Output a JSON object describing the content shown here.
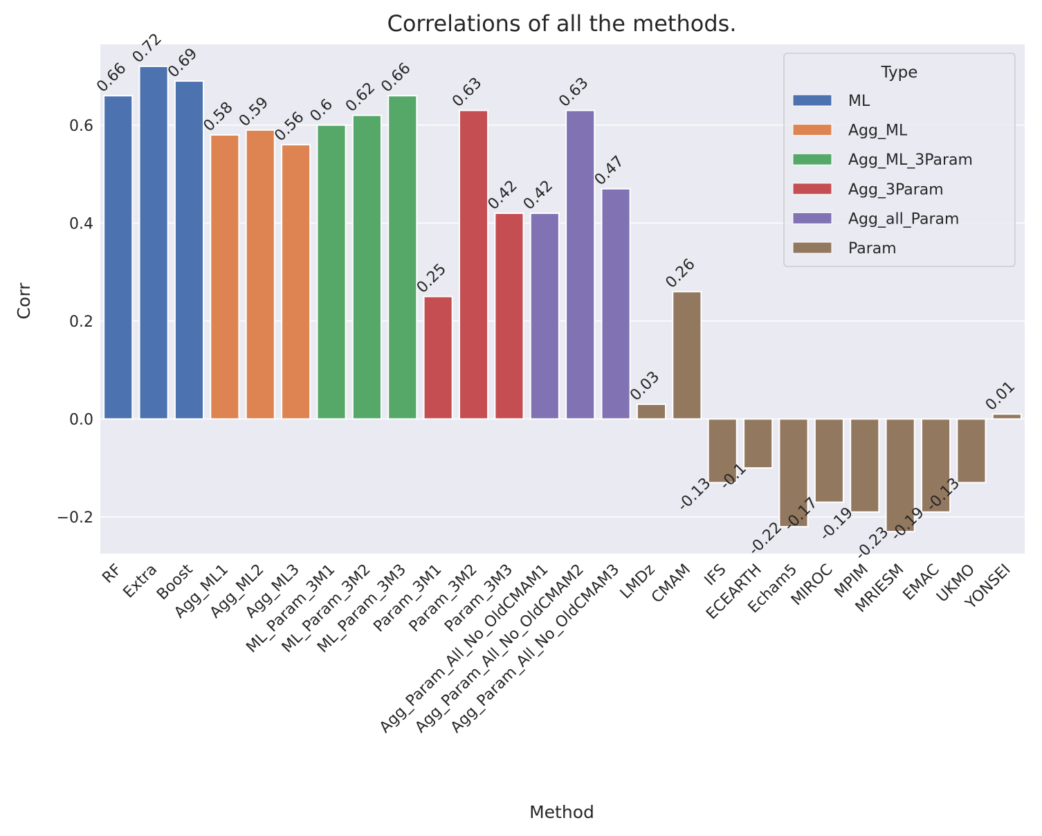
{
  "chart_data": {
    "type": "bar",
    "title": "Correlations of all the methods.",
    "xlabel": "Method",
    "ylabel": "Corr",
    "ylim": [
      -0.275,
      0.765
    ],
    "yticks": [
      -0.2,
      0.0,
      0.2,
      0.4,
      0.6
    ],
    "ytick_labels": [
      "−0.2",
      "0.0",
      "0.2",
      "0.4",
      "0.6"
    ],
    "grid": true,
    "legend": {
      "title": "Type",
      "position": "top-right",
      "entries": [
        {
          "name": "ML",
          "color": "#4c72b0"
        },
        {
          "name": "Agg_ML",
          "color": "#dd8452"
        },
        {
          "name": "Agg_ML_3Param",
          "color": "#55a868"
        },
        {
          "name": "Agg_3Param",
          "color": "#c44e52"
        },
        {
          "name": "Agg_all_Param",
          "color": "#8172b3"
        },
        {
          "name": "Param",
          "color": "#937860"
        }
      ]
    },
    "categories": [
      "RF",
      "Extra",
      "Boost",
      "Agg_ML1",
      "Agg_ML2",
      "Agg_ML3",
      "ML_Param_3M1",
      "ML_Param_3M2",
      "ML_Param_3M3",
      "Param_3M1",
      "Param_3M2",
      "Param_3M3",
      "Agg_Param_All_No_OldCMAM1",
      "Agg_Param_All_No_OldCMAM2",
      "Agg_Param_All_No_OldCMAM3",
      "LMDz",
      "CMAM",
      "IFS",
      "ECEARTH",
      "Echam5",
      "MIROC",
      "MPIM",
      "MRIESM",
      "EMAC",
      "UKMO",
      "YONSEI"
    ],
    "values": [
      0.66,
      0.72,
      0.69,
      0.58,
      0.59,
      0.56,
      0.6,
      0.62,
      0.66,
      0.25,
      0.63,
      0.42,
      0.42,
      0.63,
      0.47,
      0.03,
      0.26,
      -0.13,
      -0.1,
      -0.22,
      -0.17,
      -0.19,
      -0.23,
      -0.19,
      -0.13,
      0.01
    ],
    "value_labels": [
      "0.66",
      "0.72",
      "0.69",
      "0.58",
      "0.59",
      "0.56",
      "0.6",
      "0.62",
      "0.66",
      "0.25",
      "0.63",
      "0.42",
      "0.42",
      "0.63",
      "0.47",
      "0.03",
      "0.26",
      "-0.13",
      "-0.1",
      "-0.22",
      "-0.17",
      "-0.19",
      "-0.23",
      "-0.19",
      "-0.13",
      "0.01"
    ],
    "types": [
      "ML",
      "ML",
      "ML",
      "Agg_ML",
      "Agg_ML",
      "Agg_ML",
      "Agg_ML_3Param",
      "Agg_ML_3Param",
      "Agg_ML_3Param",
      "Agg_3Param",
      "Agg_3Param",
      "Agg_3Param",
      "Agg_all_Param",
      "Agg_all_Param",
      "Agg_all_Param",
      "Param",
      "Param",
      "Param",
      "Param",
      "Param",
      "Param",
      "Param",
      "Param",
      "Param",
      "Param",
      "Param"
    ]
  }
}
